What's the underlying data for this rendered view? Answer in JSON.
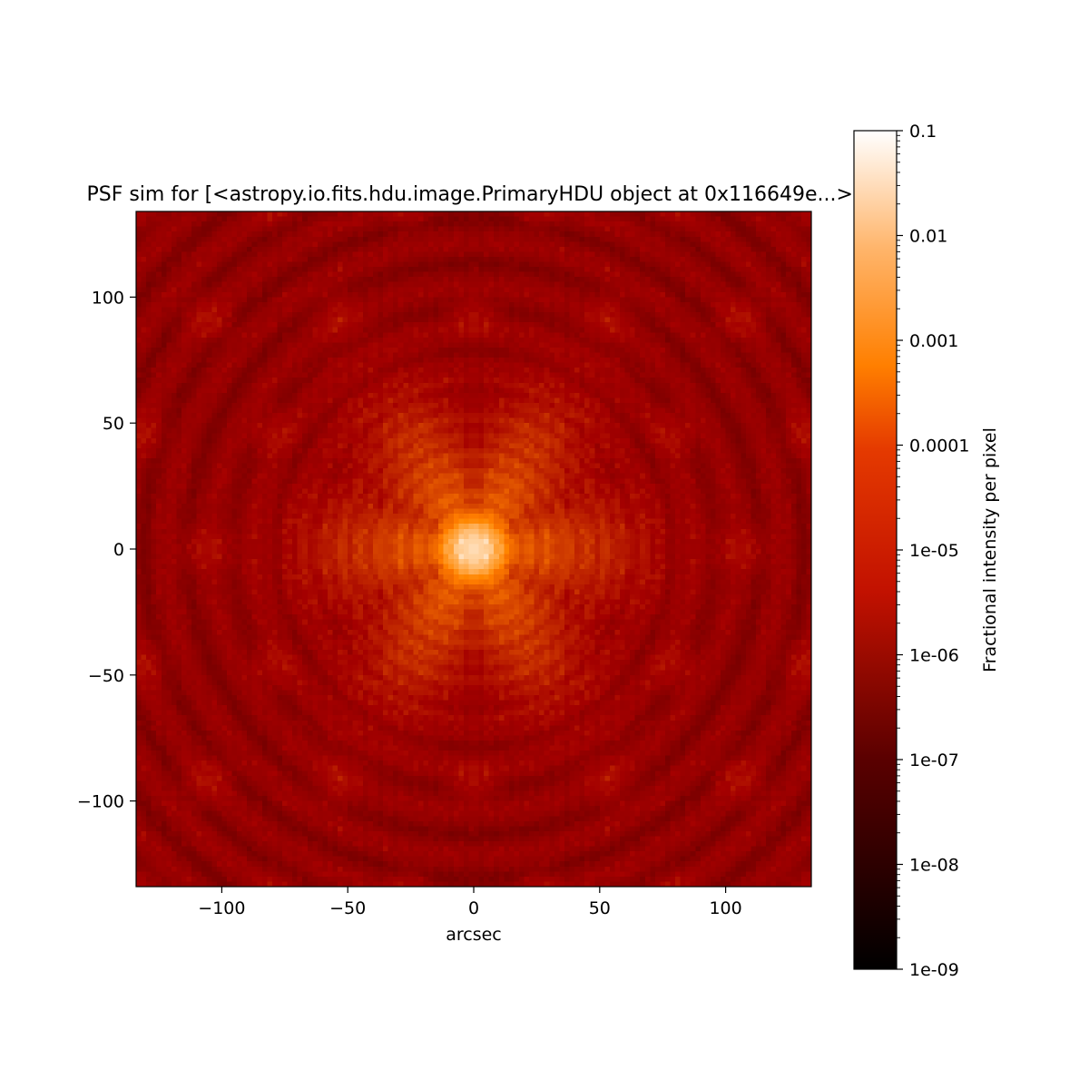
{
  "chart_data": {
    "type": "heatmap",
    "title": "PSF sim for [<astropy.io.fits.hdu.image.PrimaryHDU object at 0x116649e...>]",
    "xlabel": "arcsec",
    "ylabel": "",
    "xlim": [
      -134,
      134
    ],
    "ylim": [
      -134,
      134
    ],
    "x_ticks": [
      -100,
      -50,
      0,
      50,
      100
    ],
    "y_ticks": [
      -100,
      -50,
      0,
      50,
      100
    ],
    "x_tick_labels": [
      "−100",
      "−50",
      "0",
      "50",
      "100"
    ],
    "y_tick_labels": [
      "−100",
      "−50",
      "0",
      "50",
      "100"
    ],
    "pixel_scale_arcsec": 2.0,
    "colormap": "gist_heat",
    "peak": {
      "x": 0,
      "y": 0,
      "value": 0.1
    },
    "hexagonal_ghost_spacing_arcsec": 53,
    "colorbar": {
      "label": "Fractional intensity per pixel",
      "scale": "log",
      "range": [
        1e-09,
        0.1
      ],
      "ticks": [
        1e-09,
        1e-08,
        1e-07,
        1e-06,
        1e-05,
        0.0001,
        0.001,
        0.01,
        0.1
      ],
      "tick_labels": [
        "1e-09",
        "1e-08",
        "1e-07",
        "1e-06",
        "1e-05",
        "0.0001",
        "0.001",
        "0.01",
        "0.1"
      ]
    }
  }
}
